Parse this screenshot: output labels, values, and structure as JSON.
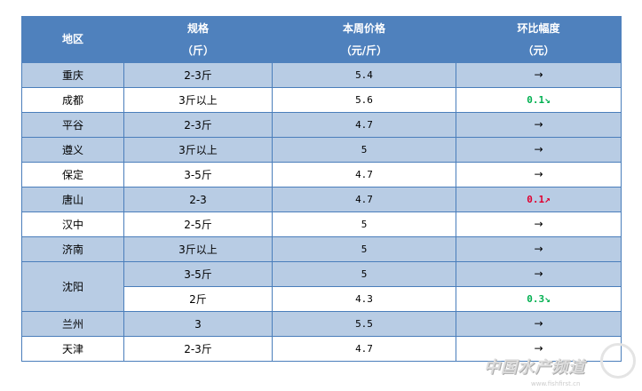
{
  "header": {
    "region": "地区",
    "spec": [
      "规格",
      "（斤）"
    ],
    "price": [
      "本周价格",
      "（元/斤）"
    ],
    "change": [
      "环比幅度",
      "（元）"
    ]
  },
  "rows": [
    {
      "region": "重庆",
      "spec": "2-3斤",
      "price": "5.4",
      "change": "",
      "trend": "flat"
    },
    {
      "region": "成都",
      "spec": "3斤以上",
      "price": "5.6",
      "change": "0.1",
      "trend": "down"
    },
    {
      "region": "平谷",
      "spec": "2-3斤",
      "price": "4.7",
      "change": "",
      "trend": "flat"
    },
    {
      "region": "遵义",
      "spec": "3斤以上",
      "price": "5",
      "change": "",
      "trend": "flat"
    },
    {
      "region": "保定",
      "spec": "3-5斤",
      "price": "4.7",
      "change": "",
      "trend": "flat"
    },
    {
      "region": "唐山",
      "spec": "2-3",
      "price": "4.7",
      "change": "0.1",
      "trend": "up"
    },
    {
      "region": "汉中",
      "spec": "2-5斤",
      "price": "5",
      "change": "",
      "trend": "flat"
    },
    {
      "region": "济南",
      "spec": "3斤以上",
      "price": "5",
      "change": "",
      "trend": "flat"
    },
    {
      "region": "沈阳",
      "spec": "3-5斤",
      "price": "5",
      "change": "",
      "trend": "flat"
    },
    {
      "region": "沈阳",
      "spec": "2斤",
      "price": "4.3",
      "change": "0.3",
      "trend": "down"
    },
    {
      "region": "兰州",
      "spec": "3",
      "price": "5.5",
      "change": "",
      "trend": "flat"
    },
    {
      "region": "天津",
      "spec": "2-3斤",
      "price": "4.7",
      "change": "",
      "trend": "flat"
    }
  ],
  "watermark": {
    "text": "中国水产频道",
    "url": "www.fishfirst.cn"
  },
  "colors": {
    "header": "#4f81bd",
    "band": "#b8cce4",
    "down": "#00b050",
    "up": "#e00030"
  }
}
